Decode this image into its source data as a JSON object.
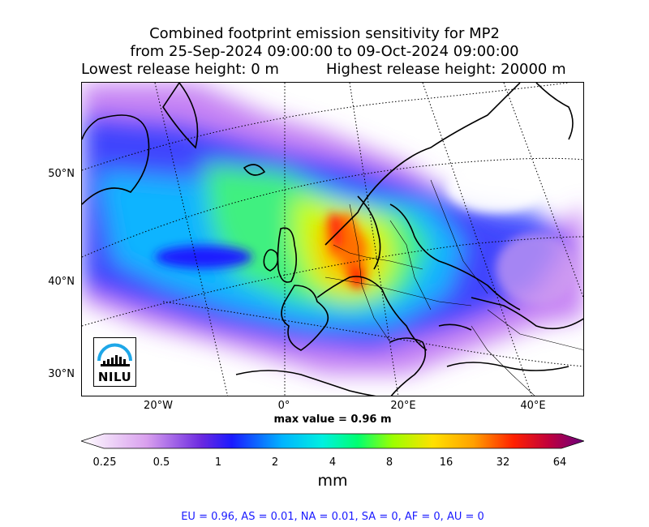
{
  "title": {
    "line1": "Combined footprint emission sensitivity for MP2",
    "line2": "from 25-Sep-2024 09:00:00 to 09-Oct-2024 09:00:00",
    "release_low": "Lowest release height: 0 m",
    "release_high": "Highest release height: 20000 m"
  },
  "map": {
    "lat_labels": [
      "50°N",
      "40°N",
      "30°N"
    ],
    "lon_labels": [
      "20°W",
      "0°",
      "20°E",
      "40°E"
    ],
    "max_value_label": "max value = 0.96 m",
    "logo_text": "NILU"
  },
  "colorbar": {
    "ticks": [
      "0.25",
      "0.5",
      "1",
      "2",
      "4",
      "8",
      "16",
      "32",
      "64"
    ],
    "unit": "mm",
    "colors": [
      "#ffffff",
      "#e8b8f0",
      "#9b3fd8",
      "#1a1aff",
      "#00c8ff",
      "#00ff80",
      "#b0ff00",
      "#ffd000",
      "#ff7a00",
      "#ff0000",
      "#b0004a",
      "#7a0070"
    ]
  },
  "footer": "EU = 0.96,  AS = 0.01,  NA = 0.01,  SA = 0,  AF = 0,  AU = 0"
}
